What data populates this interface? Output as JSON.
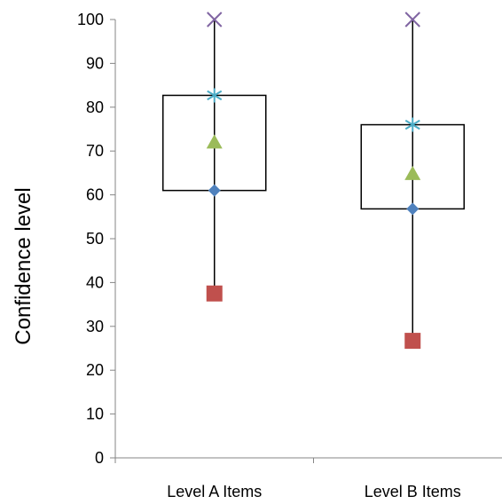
{
  "chart_data": {
    "type": "boxplot",
    "title": "",
    "xlabel": "",
    "ylabel": "Confidence level",
    "ylim": [
      0,
      100
    ],
    "yticks": [
      0,
      10,
      20,
      30,
      40,
      50,
      60,
      70,
      80,
      90,
      100
    ],
    "grid": false,
    "legend": "none",
    "categories": [
      "Level A Items",
      "Level B Items"
    ],
    "boxes": [
      {
        "min": 37.5,
        "q1": 61,
        "median": 61,
        "mean": 72,
        "q3": 82.7,
        "max": 100
      },
      {
        "min": 26.7,
        "q1": 56.8,
        "median": 56.8,
        "mean": 64.8,
        "q3": 76,
        "max": 100
      }
    ],
    "markers": {
      "median": {
        "shape": "diamond",
        "color": "#4F81BD"
      },
      "mean": {
        "shape": "triangle",
        "color": "#9BBB59"
      },
      "min": {
        "shape": "square",
        "color": "#C0504D"
      },
      "q3": {
        "shape": "star",
        "color": "#4BACC6"
      },
      "max": {
        "shape": "x",
        "color": "#8064A2"
      }
    }
  }
}
